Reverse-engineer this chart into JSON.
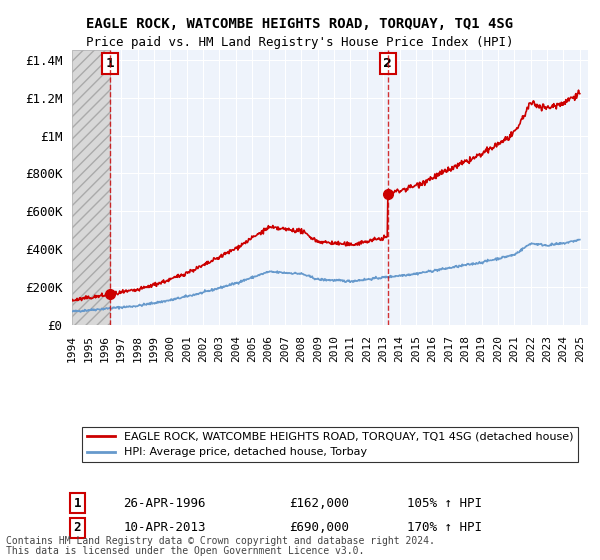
{
  "title": "EAGLE ROCK, WATCOMBE HEIGHTS ROAD, TORQUAY, TQ1 4SG",
  "subtitle": "Price paid vs. HM Land Registry's House Price Index (HPI)",
  "legend_line1": "EAGLE ROCK, WATCOMBE HEIGHTS ROAD, TORQUAY, TQ1 4SG (detached house)",
  "legend_line2": "HPI: Average price, detached house, Torbay",
  "sale1_date": 1996.32,
  "sale1_price": 162000,
  "sale1_label": "1",
  "sale1_annotation": "26-APR-1996",
  "sale1_price_str": "£162,000",
  "sale1_hpi_str": "105% ↑ HPI",
  "sale2_date": 2013.27,
  "sale2_price": 690000,
  "sale2_label": "2",
  "sale2_annotation": "10-APR-2013",
  "sale2_price_str": "£690,000",
  "sale2_hpi_str": "170% ↑ HPI",
  "red_color": "#cc0000",
  "blue_color": "#6699cc",
  "hatch_color": "#cccccc",
  "background_color": "#eef3fb",
  "ylim": [
    0,
    1450000
  ],
  "xlim": [
    1994,
    2025.5
  ],
  "yticks": [
    0,
    200000,
    400000,
    600000,
    800000,
    1000000,
    1200000,
    1400000
  ],
  "ytick_labels": [
    "£0",
    "£200K",
    "£400K",
    "£600K",
    "£800K",
    "£1M",
    "£1.2M",
    "£1.4M"
  ],
  "xticks": [
    1994,
    1995,
    1996,
    1997,
    1998,
    1999,
    2000,
    2001,
    2002,
    2003,
    2004,
    2005,
    2006,
    2007,
    2008,
    2009,
    2010,
    2011,
    2012,
    2013,
    2014,
    2015,
    2016,
    2017,
    2018,
    2019,
    2020,
    2021,
    2022,
    2023,
    2024,
    2025
  ],
  "footnote1": "Contains HM Land Registry data © Crown copyright and database right 2024.",
  "footnote2": "This data is licensed under the Open Government Licence v3.0."
}
